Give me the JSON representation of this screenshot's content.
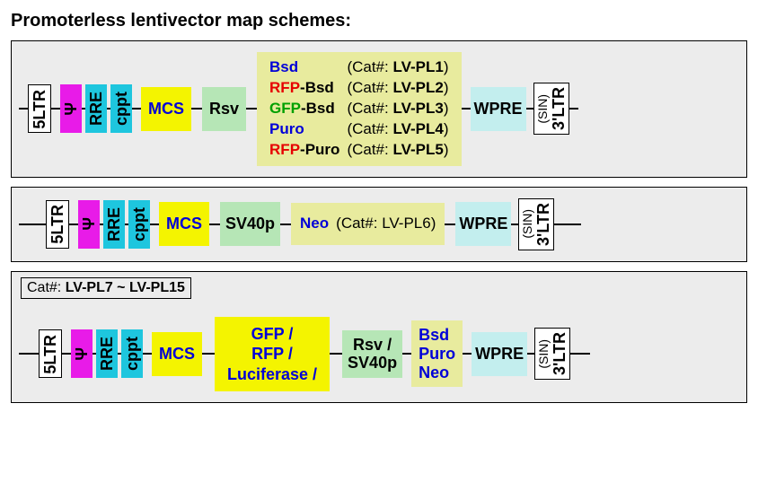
{
  "title": "Promoterless lentivector map schemes:",
  "colors": {
    "white": "#ffffff",
    "magenta": "#e81be8",
    "cyan": "#1ec6de",
    "yellow": "#f4f400",
    "mint": "#b6e6b6",
    "olive": "#e8eb9e",
    "teal": "#c3eeee",
    "blue_text": "#0000d8",
    "red_text": "#e60000",
    "green_text": "#00a000",
    "black": "#000000"
  },
  "elements": {
    "ltr5": "5LTR",
    "psi": "Ψ",
    "rre": "RRE",
    "cppt": "cppt",
    "mcs": "MCS",
    "rsv": "Rsv",
    "sv40p": "SV40p",
    "wpre": "WPRE",
    "ltr3": "3'LTR",
    "sin": "(SIN)",
    "neo": "Neo",
    "rsv_sv40": [
      "Rsv /",
      "SV40p"
    ],
    "bpn": [
      "Bsd",
      "Puro",
      "Neo"
    ],
    "reporter": [
      "GFP /",
      "RFP /",
      "Luciferase /"
    ]
  },
  "panel1_markers": [
    {
      "parts": [
        {
          "t": "Bsd",
          "c": "blue_text"
        }
      ],
      "cat": "LV-PL1"
    },
    {
      "parts": [
        {
          "t": "RFP",
          "c": "red_text"
        },
        {
          "t": "-",
          "c": "black"
        },
        {
          "t": "Bsd",
          "c": "black"
        }
      ],
      "cat": "LV-PL2"
    },
    {
      "parts": [
        {
          "t": "GFP",
          "c": "green_text"
        },
        {
          "t": "-",
          "c": "black"
        },
        {
          "t": "Bsd",
          "c": "black"
        }
      ],
      "cat": "LV-PL3"
    },
    {
      "parts": [
        {
          "t": "Puro",
          "c": "blue_text"
        }
      ],
      "cat": "LV-PL4"
    },
    {
      "parts": [
        {
          "t": "RFP",
          "c": "red_text"
        },
        {
          "t": "-",
          "c": "black"
        },
        {
          "t": "Puro",
          "c": "black"
        }
      ],
      "cat": "LV-PL5"
    }
  ],
  "panel2_cat": "LV-PL6",
  "panel3_tag": "Cat#: LV-PL7 ~ LV-PL15",
  "cat_prefix": "(Cat#: ",
  "cat_suffix": ")",
  "fontsizes": {
    "title": 20,
    "label": 18,
    "marker": 17
  },
  "connector_widths": {
    "edge": 10,
    "tiny": 4,
    "short": 8,
    "med": 10,
    "long": 14
  }
}
